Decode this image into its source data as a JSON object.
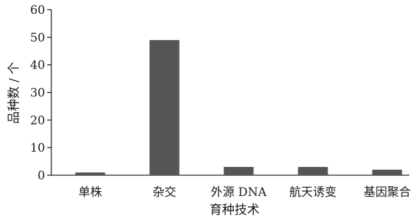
{
  "chart_data": {
    "type": "bar",
    "categories": [
      "单株",
      "杂交",
      "外源 DNA",
      "航天诱变",
      "基因聚合"
    ],
    "values": [
      1,
      49,
      3,
      3,
      2
    ],
    "xlabel": "育种技术",
    "ylabel": "品种数 / 个",
    "ylim": [
      0,
      60
    ],
    "yticks": [
      0,
      10,
      20,
      30,
      40,
      50,
      60
    ],
    "grid": false,
    "bar_color": "#555555"
  }
}
